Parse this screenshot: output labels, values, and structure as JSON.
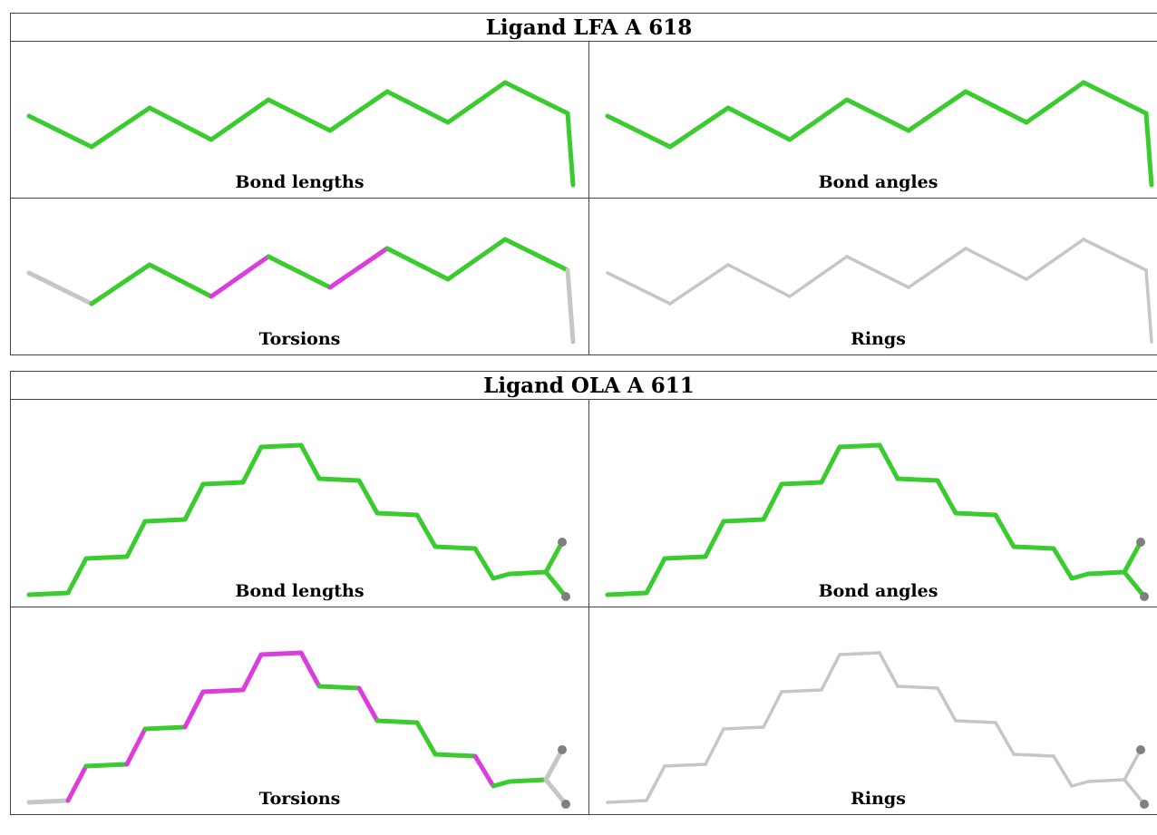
{
  "tables": [
    {
      "title": "Ligand LFA A 618",
      "panels": [
        {
          "caption": "Bond lengths"
        },
        {
          "caption": "Bond angles"
        },
        {
          "caption": "Torsions"
        },
        {
          "caption": "Rings"
        }
      ]
    },
    {
      "title": "Ligand OLA A 611",
      "panels": [
        {
          "caption": "Bond lengths"
        },
        {
          "caption": "Bond angles"
        },
        {
          "caption": "Torsions"
        },
        {
          "caption": "Rings"
        }
      ]
    }
  ],
  "colors": {
    "green": "#3acc2f",
    "magenta": "#dd3cdd",
    "gray": "#c6c6c6",
    "atom": "#7f7f7f"
  }
}
